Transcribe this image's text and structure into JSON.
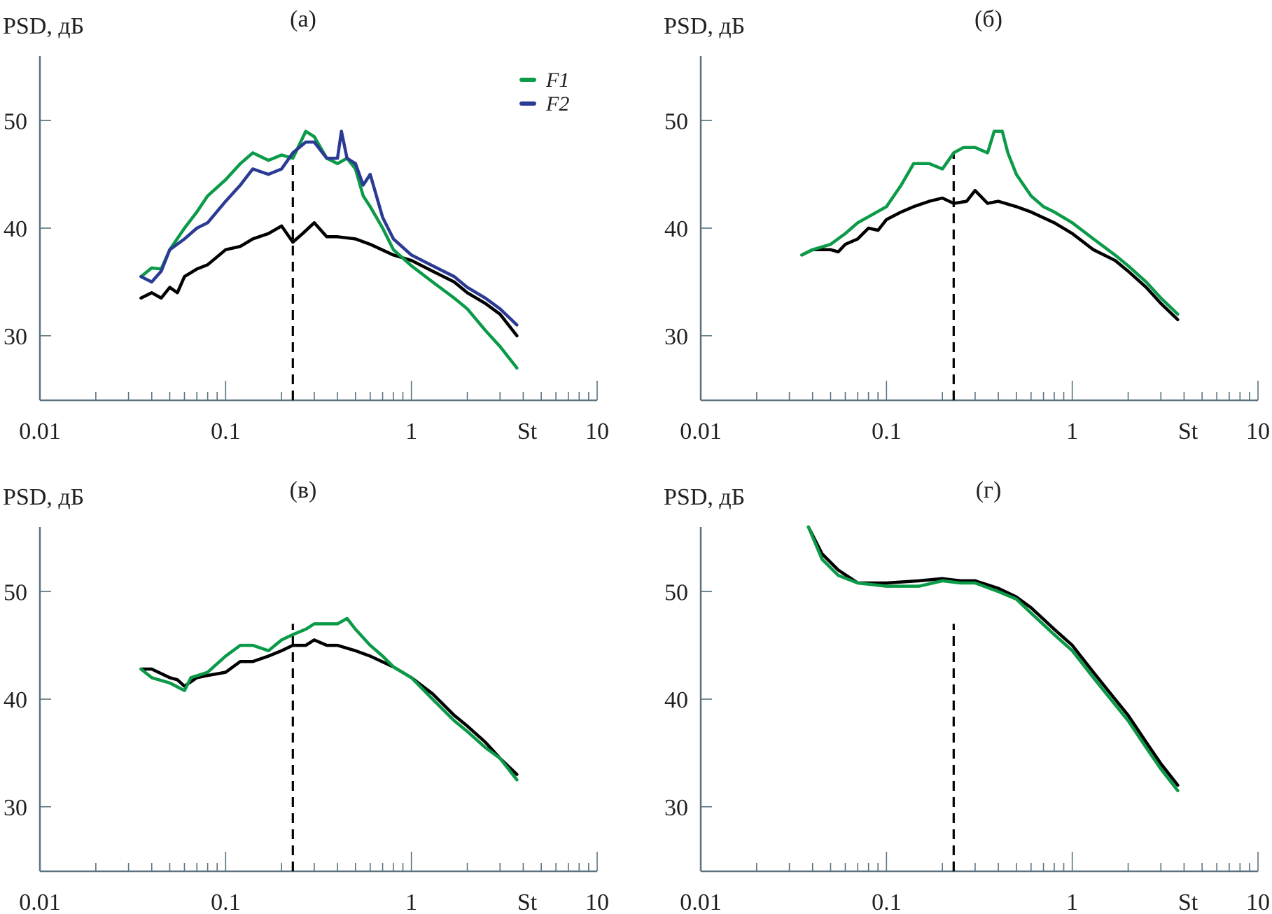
{
  "colors": {
    "F1": "#0a9a48",
    "F2": "#2b3a93",
    "ref": "#000000"
  },
  "legend": [
    {
      "key": "F1",
      "label": "F1"
    },
    {
      "key": "F2",
      "label": "F2"
    }
  ],
  "chart_data": [
    {
      "type": "line",
      "title": "(а)",
      "ylabel": "PSD, дБ",
      "xlabel": "St",
      "xscale": "log",
      "xlim": [
        0.01,
        10
      ],
      "ylim": [
        24,
        56
      ],
      "xticks": [
        "0.01",
        "0.1",
        "1",
        "10"
      ],
      "yticks": [
        "30",
        "40",
        "50"
      ],
      "vline_St": 0.23,
      "legend": "top-right",
      "series": [
        {
          "name": "reference",
          "color_key": "ref",
          "x": [
            0.035,
            0.04,
            0.045,
            0.05,
            0.055,
            0.06,
            0.07,
            0.08,
            0.1,
            0.12,
            0.14,
            0.17,
            0.2,
            0.23,
            0.26,
            0.3,
            0.35,
            0.4,
            0.5,
            0.6,
            0.8,
            1,
            1.3,
            1.7,
            2,
            2.5,
            3,
            3.7
          ],
          "y": [
            33.5,
            34,
            33.5,
            34.5,
            34,
            35.5,
            36.2,
            36.6,
            38,
            38.3,
            39,
            39.5,
            40.2,
            38.7,
            39.5,
            40.5,
            39.2,
            39.2,
            39,
            38.5,
            37.5,
            37,
            36,
            35,
            34,
            33,
            32,
            30
          ]
        },
        {
          "name": "F1",
          "color_key": "F1",
          "x": [
            0.035,
            0.04,
            0.045,
            0.05,
            0.06,
            0.07,
            0.08,
            0.1,
            0.12,
            0.14,
            0.17,
            0.2,
            0.23,
            0.27,
            0.3,
            0.35,
            0.4,
            0.45,
            0.5,
            0.55,
            0.6,
            0.7,
            0.8,
            1,
            1.3,
            1.7,
            2,
            2.5,
            3,
            3.7
          ],
          "y": [
            35.5,
            36.3,
            36.2,
            38,
            40,
            41.5,
            43,
            44.5,
            46,
            47,
            46.3,
            46.8,
            46.5,
            49,
            48.5,
            46.5,
            46,
            46.5,
            45.5,
            43,
            42,
            40,
            38,
            36.5,
            35,
            33.5,
            32.5,
            30.5,
            29,
            27
          ]
        },
        {
          "name": "F2",
          "color_key": "F2",
          "x": [
            0.035,
            0.04,
            0.045,
            0.05,
            0.06,
            0.07,
            0.08,
            0.1,
            0.12,
            0.14,
            0.17,
            0.2,
            0.23,
            0.27,
            0.3,
            0.35,
            0.4,
            0.42,
            0.45,
            0.5,
            0.55,
            0.6,
            0.7,
            0.8,
            1,
            1.3,
            1.7,
            2,
            2.5,
            3,
            3.7
          ],
          "y": [
            35.5,
            35,
            36,
            38,
            39,
            40,
            40.5,
            42.5,
            44,
            45.5,
            45,
            45.5,
            47,
            48,
            48,
            46.5,
            46.5,
            49,
            46.5,
            46,
            44,
            45,
            41,
            39,
            37.5,
            36.5,
            35.5,
            34.5,
            33.5,
            32.5,
            31
          ]
        }
      ]
    },
    {
      "type": "line",
      "title": "(б)",
      "ylabel": "PSD, дБ",
      "xlabel": "St",
      "xscale": "log",
      "xlim": [
        0.01,
        10
      ],
      "ylim": [
        24,
        56
      ],
      "xticks": [
        "0.01",
        "0.1",
        "1",
        "10"
      ],
      "yticks": [
        "30",
        "40",
        "50"
      ],
      "vline_St": 0.23,
      "series": [
        {
          "name": "reference",
          "color_key": "ref",
          "x": [
            0.035,
            0.04,
            0.05,
            0.055,
            0.06,
            0.07,
            0.08,
            0.09,
            0.1,
            0.12,
            0.14,
            0.17,
            0.2,
            0.23,
            0.27,
            0.3,
            0.35,
            0.4,
            0.5,
            0.6,
            0.8,
            1,
            1.3,
            1.7,
            2,
            2.5,
            3,
            3.7
          ],
          "y": [
            37.5,
            38,
            38,
            37.8,
            38.5,
            39,
            40,
            39.8,
            40.8,
            41.5,
            42,
            42.5,
            42.8,
            42.3,
            42.5,
            43.5,
            42.3,
            42.5,
            42,
            41.5,
            40.5,
            39.5,
            38,
            37,
            36,
            34.5,
            33,
            31.5
          ]
        },
        {
          "name": "F1",
          "color_key": "F1",
          "x": [
            0.035,
            0.04,
            0.05,
            0.06,
            0.07,
            0.1,
            0.12,
            0.14,
            0.17,
            0.2,
            0.23,
            0.26,
            0.3,
            0.35,
            0.38,
            0.42,
            0.45,
            0.5,
            0.6,
            0.7,
            0.8,
            1,
            1.3,
            1.7,
            2,
            2.5,
            3,
            3.7
          ],
          "y": [
            37.5,
            38,
            38.5,
            39.5,
            40.5,
            42,
            44,
            46,
            46,
            45.5,
            47,
            47.5,
            47.5,
            47,
            49,
            49,
            47,
            45,
            43,
            42,
            41.5,
            40.5,
            39,
            37.5,
            36.5,
            35,
            33.5,
            32
          ]
        }
      ]
    },
    {
      "type": "line",
      "title": "(в)",
      "ylabel": "PSD, дБ",
      "xlabel": "St",
      "xscale": "log",
      "xlim": [
        0.01,
        10
      ],
      "ylim": [
        24,
        56
      ],
      "xticks": [
        "0.01",
        "0.1",
        "1",
        "10"
      ],
      "yticks": [
        "30",
        "40",
        "50"
      ],
      "vline_St": 0.23,
      "series": [
        {
          "name": "reference",
          "color_key": "ref",
          "x": [
            0.035,
            0.04,
            0.05,
            0.055,
            0.06,
            0.07,
            0.08,
            0.1,
            0.12,
            0.14,
            0.17,
            0.2,
            0.23,
            0.27,
            0.3,
            0.35,
            0.4,
            0.5,
            0.6,
            0.8,
            1,
            1.3,
            1.7,
            2,
            2.5,
            3,
            3.7
          ],
          "y": [
            42.8,
            42.8,
            42,
            41.8,
            41.2,
            42,
            42.2,
            42.5,
            43.5,
            43.5,
            44,
            44.5,
            45,
            45,
            45.5,
            45,
            45,
            44.5,
            44,
            43,
            42,
            40.5,
            38.5,
            37.5,
            36,
            34.5,
            33
          ]
        },
        {
          "name": "F1",
          "color_key": "F1",
          "x": [
            0.035,
            0.04,
            0.05,
            0.06,
            0.065,
            0.08,
            0.1,
            0.12,
            0.14,
            0.17,
            0.2,
            0.23,
            0.27,
            0.3,
            0.35,
            0.4,
            0.45,
            0.5,
            0.6,
            0.7,
            0.8,
            1,
            1.3,
            1.7,
            2,
            2.5,
            3,
            3.7
          ],
          "y": [
            42.8,
            42,
            41.5,
            40.8,
            42,
            42.5,
            44,
            45,
            45,
            44.5,
            45.5,
            46,
            46.5,
            47,
            47,
            47,
            47.5,
            46.5,
            45,
            44,
            43,
            42,
            40,
            38,
            37,
            35.5,
            34.5,
            32.5
          ]
        }
      ]
    },
    {
      "type": "line",
      "title": "(г)",
      "ylabel": "PSD, дБ",
      "xlabel": "St",
      "xscale": "log",
      "xlim": [
        0.01,
        10
      ],
      "ylim": [
        24,
        56
      ],
      "xticks": [
        "0.01",
        "0.1",
        "1",
        "10"
      ],
      "yticks": [
        "30",
        "40",
        "50"
      ],
      "vline_St": 0.23,
      "series": [
        {
          "name": "reference",
          "color_key": "ref",
          "x": [
            0.038,
            0.045,
            0.055,
            0.07,
            0.1,
            0.15,
            0.2,
            0.25,
            0.3,
            0.4,
            0.5,
            0.6,
            0.8,
            1,
            1.3,
            1.7,
            2,
            2.5,
            3,
            3.7
          ],
          "y": [
            56,
            53.5,
            52,
            50.8,
            50.8,
            51,
            51.2,
            51,
            51,
            50.3,
            49.5,
            48.5,
            46.5,
            45,
            42.5,
            40,
            38.5,
            36,
            34,
            32
          ]
        },
        {
          "name": "F1",
          "color_key": "F1",
          "x": [
            0.038,
            0.045,
            0.055,
            0.07,
            0.1,
            0.15,
            0.2,
            0.25,
            0.3,
            0.4,
            0.5,
            0.6,
            0.8,
            1,
            1.3,
            1.7,
            2,
            2.5,
            3,
            3.7
          ],
          "y": [
            56,
            53,
            51.5,
            50.8,
            50.5,
            50.5,
            51,
            50.8,
            50.8,
            50,
            49.3,
            48,
            46,
            44.5,
            42,
            39.5,
            38,
            35.5,
            33.5,
            31.5
          ]
        }
      ]
    }
  ]
}
